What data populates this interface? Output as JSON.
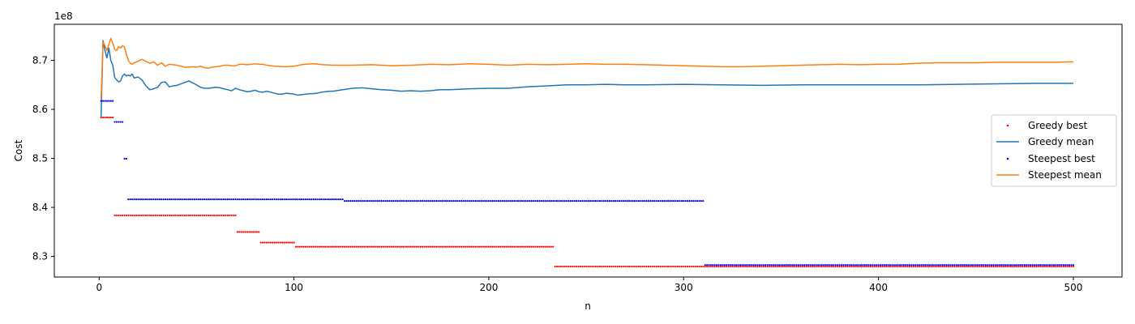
{
  "chart_data": {
    "type": "line",
    "xlabel": "n",
    "ylabel": "Cost",
    "offset_label": "1e8",
    "xlim": [
      -23,
      525
    ],
    "ylim": [
      8.258,
      8.7735
    ],
    "x_ticks": [
      {
        "value": 0,
        "label": "0"
      },
      {
        "value": 100,
        "label": "100"
      },
      {
        "value": 200,
        "label": "200"
      },
      {
        "value": 300,
        "label": "300"
      },
      {
        "value": 400,
        "label": "400"
      },
      {
        "value": 500,
        "label": "500"
      }
    ],
    "y_ticks": [
      {
        "value": 8.3,
        "label": "8.3"
      },
      {
        "value": 8.4,
        "label": "8.4"
      },
      {
        "value": 8.5,
        "label": "8.5"
      },
      {
        "value": 8.6,
        "label": "8.6"
      },
      {
        "value": 8.7,
        "label": "8.7"
      }
    ],
    "grid": false,
    "legend_position": "center-right",
    "series": [
      {
        "name": "Greedy best",
        "style": "points",
        "color": "#ff0000",
        "steps": [
          {
            "from": 1,
            "to": 7,
            "value": 8.5835
          },
          {
            "from": 8,
            "to": 70,
            "value": 8.3837
          },
          {
            "from": 71,
            "to": 82,
            "value": 8.3499
          },
          {
            "from": 83,
            "to": 100,
            "value": 8.3282
          },
          {
            "from": 101,
            "to": 233,
            "value": 8.3198
          },
          {
            "from": 234,
            "to": 500,
            "value": 8.2794
          }
        ]
      },
      {
        "name": "Greedy mean",
        "style": "line",
        "color": "#1f77b4",
        "x": [
          1,
          2,
          3,
          4,
          5,
          6,
          7,
          8,
          9,
          10,
          11,
          12,
          13,
          14,
          15,
          16,
          17,
          18,
          20,
          22,
          24,
          26,
          28,
          30,
          32,
          34,
          36,
          38,
          40,
          42,
          44,
          46,
          48,
          50,
          52,
          54,
          56,
          58,
          60,
          62,
          64,
          66,
          68,
          70,
          72,
          74,
          76,
          78,
          80,
          82,
          84,
          86,
          88,
          90,
          92,
          94,
          96,
          98,
          100,
          102,
          104,
          106,
          108,
          110,
          112,
          114,
          116,
          118,
          120,
          125,
          130,
          135,
          140,
          145,
          150,
          155,
          160,
          165,
          170,
          175,
          180,
          190,
          200,
          210,
          220,
          230,
          240,
          250,
          260,
          270,
          280,
          300,
          320,
          340,
          360,
          380,
          400,
          420,
          440,
          460,
          480,
          500
        ],
        "y": [
          8.585,
          8.74,
          8.72,
          8.705,
          8.725,
          8.7,
          8.69,
          8.665,
          8.66,
          8.656,
          8.658,
          8.668,
          8.672,
          8.668,
          8.67,
          8.668,
          8.672,
          8.664,
          8.666,
          8.66,
          8.648,
          8.64,
          8.642,
          8.645,
          8.655,
          8.656,
          8.646,
          8.648,
          8.649,
          8.652,
          8.655,
          8.658,
          8.654,
          8.65,
          8.645,
          8.643,
          8.643,
          8.644,
          8.645,
          8.644,
          8.642,
          8.64,
          8.638,
          8.643,
          8.64,
          8.638,
          8.636,
          8.637,
          8.639,
          8.636,
          8.635,
          8.637,
          8.635,
          8.633,
          8.631,
          8.631,
          8.633,
          8.632,
          8.631,
          8.629,
          8.63,
          8.631,
          8.632,
          8.632,
          8.633,
          8.635,
          8.636,
          8.637,
          8.637,
          8.64,
          8.643,
          8.644,
          8.642,
          8.64,
          8.639,
          8.637,
          8.638,
          8.637,
          8.638,
          8.64,
          8.64,
          8.642,
          8.643,
          8.643,
          8.646,
          8.648,
          8.65,
          8.65,
          8.651,
          8.65,
          8.65,
          8.651,
          8.65,
          8.649,
          8.65,
          8.65,
          8.65,
          8.65,
          8.651,
          8.652,
          8.653,
          8.653
        ]
      },
      {
        "name": "Steepest best",
        "style": "points",
        "color": "#0000ff",
        "steps": [
          {
            "from": 1,
            "to": 7,
            "value": 8.6172
          },
          {
            "from": 8,
            "to": 12,
            "value": 8.5743
          },
          {
            "from": 13,
            "to": 14,
            "value": 8.4995
          },
          {
            "from": 15,
            "to": 125,
            "value": 8.4165
          },
          {
            "from": 126,
            "to": 310,
            "value": 8.4132
          },
          {
            "from": 311,
            "to": 500,
            "value": 8.2825
          }
        ]
      },
      {
        "name": "Steepest mean",
        "style": "line",
        "color": "#ff7f0e",
        "x": [
          1,
          2,
          3,
          4,
          5,
          6,
          7,
          8,
          9,
          10,
          11,
          12,
          13,
          14,
          15,
          16,
          17,
          18,
          20,
          22,
          24,
          26,
          28,
          30,
          32,
          34,
          36,
          38,
          40,
          42,
          44,
          46,
          48,
          50,
          52,
          54,
          56,
          58,
          60,
          62,
          64,
          66,
          68,
          70,
          72,
          74,
          76,
          78,
          80,
          82,
          84,
          86,
          88,
          90,
          95,
          100,
          105,
          110,
          115,
          120,
          130,
          140,
          150,
          160,
          170,
          180,
          190,
          200,
          210,
          220,
          230,
          240,
          250,
          260,
          270,
          280,
          290,
          300,
          310,
          320,
          330,
          340,
          350,
          360,
          370,
          380,
          390,
          400,
          410,
          420,
          430,
          440,
          450,
          460,
          470,
          480,
          490,
          500
        ],
        "y": [
          8.62,
          8.737,
          8.73,
          8.72,
          8.733,
          8.745,
          8.735,
          8.722,
          8.72,
          8.728,
          8.725,
          8.73,
          8.727,
          8.712,
          8.7,
          8.694,
          8.692,
          8.695,
          8.698,
          8.702,
          8.698,
          8.694,
          8.697,
          8.69,
          8.695,
          8.688,
          8.692,
          8.691,
          8.69,
          8.688,
          8.686,
          8.686,
          8.687,
          8.686,
          8.688,
          8.685,
          8.684,
          8.686,
          8.687,
          8.688,
          8.69,
          8.69,
          8.689,
          8.689,
          8.692,
          8.692,
          8.691,
          8.692,
          8.693,
          8.692,
          8.692,
          8.69,
          8.689,
          8.688,
          8.687,
          8.688,
          8.692,
          8.693,
          8.691,
          8.69,
          8.69,
          8.691,
          8.689,
          8.69,
          8.692,
          8.691,
          8.693,
          8.692,
          8.69,
          8.692,
          8.691,
          8.692,
          8.693,
          8.692,
          8.692,
          8.691,
          8.69,
          8.689,
          8.688,
          8.687,
          8.687,
          8.688,
          8.689,
          8.69,
          8.691,
          8.692,
          8.691,
          8.692,
          8.692,
          8.694,
          8.695,
          8.695,
          8.695,
          8.696,
          8.696,
          8.696,
          8.696,
          8.697
        ]
      }
    ]
  }
}
